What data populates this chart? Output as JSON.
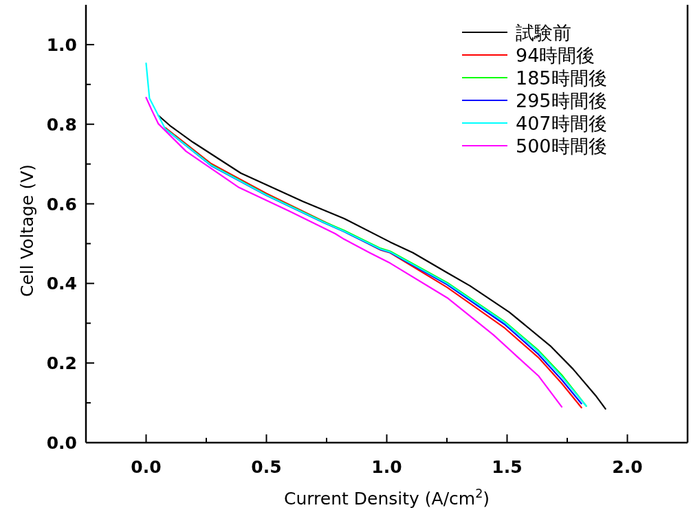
{
  "chart_data": {
    "type": "line",
    "xlabel": "Current Density (A/cm$^{2}$)",
    "ylabel": "Cell Voltage (V)",
    "xlim": [
      -0.25,
      2.25
    ],
    "xticks": [
      {
        "value": 0,
        "label": "0.0"
      },
      {
        "value": 0.25,
        "label": null
      },
      0.5,
      {
        "value": 0.75,
        "label": null
      },
      {
        "value": 1,
        "label": "1.0"
      },
      {
        "value": 1.25,
        "label": null
      },
      1.5,
      {
        "value": 1.75,
        "label": null
      },
      {
        "value": 2,
        "label": "2.0"
      }
    ],
    "ylim": [
      0,
      1.1
    ],
    "yticks": [
      {
        "value": 0,
        "label": "0.0"
      },
      {
        "value": 0.1,
        "label": null
      },
      0.2,
      {
        "value": 0.3,
        "label": null
      },
      0.4,
      {
        "value": 0.5,
        "label": null
      },
      0.6,
      {
        "value": 0.7,
        "label": null
      },
      0.8,
      {
        "value": 0.9,
        "label": null
      },
      {
        "value": 1,
        "label": "1.0"
      }
    ],
    "grid": false,
    "legend": "top right",
    "marker": "none",
    "line_style": "solid",
    "series": [
      {
        "name": "試験前",
        "color": "#000000",
        "x": [
          0.051,
          0.1,
          0.194,
          0.394,
          0.651,
          0.823,
          1.014,
          1.109,
          1.251,
          1.346,
          1.509,
          1.68,
          1.774,
          1.871,
          1.909
        ],
        "values": [
          0.822,
          0.796,
          0.755,
          0.677,
          0.606,
          0.563,
          0.504,
          0.477,
          0.427,
          0.394,
          0.328,
          0.243,
          0.185,
          0.116,
          0.085
        ]
      },
      {
        "name": "94時間後",
        "color": "#ff0000",
        "x": [
          0.08,
          0.27,
          0.5,
          0.737,
          0.823,
          0.975,
          1.014,
          1.251,
          1.49,
          1.63,
          1.727,
          1.809
        ],
        "values": [
          0.791,
          0.701,
          0.626,
          0.556,
          0.531,
          0.484,
          0.477,
          0.39,
          0.288,
          0.214,
          0.149,
          0.088
        ]
      },
      {
        "name": "185時間後",
        "color": "#00ff00",
        "x": [
          0.08,
          0.27,
          0.5,
          0.737,
          0.823,
          0.975,
          1.014,
          1.251,
          1.49,
          1.63,
          1.727,
          1.829
        ],
        "values": [
          0.789,
          0.698,
          0.623,
          0.555,
          0.533,
          0.488,
          0.481,
          0.402,
          0.304,
          0.232,
          0.17,
          0.092
        ]
      },
      {
        "name": "295時間後",
        "color": "#0000ff",
        "x": [
          0.08,
          0.27,
          0.5,
          0.737,
          0.823,
          0.975,
          1.014,
          1.251,
          1.49,
          1.63,
          1.727,
          1.809
        ],
        "values": [
          0.788,
          0.696,
          0.621,
          0.553,
          0.53,
          0.485,
          0.478,
          0.397,
          0.297,
          0.222,
          0.158,
          0.098
        ]
      },
      {
        "name": "407時間後",
        "color": "#00ffff",
        "x": [
          0,
          0.014,
          0.08,
          0.27,
          0.5,
          0.737,
          0.823,
          0.975,
          1.014,
          1.251,
          1.49,
          1.63,
          1.727,
          1.829
        ],
        "values": [
          0.953,
          0.865,
          0.788,
          0.697,
          0.622,
          0.554,
          0.531,
          0.486,
          0.479,
          0.4,
          0.302,
          0.229,
          0.166,
          0.092
        ]
      },
      {
        "name": "500時間後",
        "color": "#ff00ff",
        "x": [
          0,
          0.023,
          0.051,
          0.166,
          0.386,
          0.594,
          0.786,
          0.823,
          0.929,
          1.014,
          1.251,
          1.443,
          1.546,
          1.63,
          1.727
        ],
        "values": [
          0.867,
          0.836,
          0.801,
          0.732,
          0.641,
          0.582,
          0.525,
          0.511,
          0.477,
          0.451,
          0.364,
          0.271,
          0.214,
          0.168,
          0.09
        ]
      }
    ]
  }
}
